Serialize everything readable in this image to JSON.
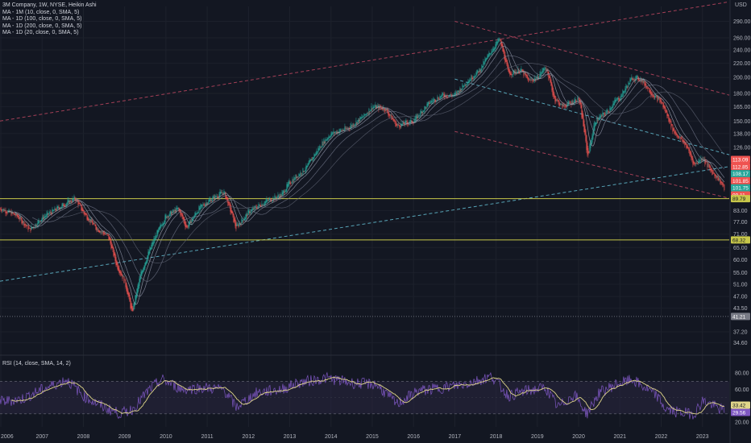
{
  "header": {
    "title": "3M Company, 1W, NYSE, Heikin Ashi",
    "indicators": [
      "MA - 1M (10, close, 0, SMA, 5)",
      "MA - 1D (100, close, 0, SMA, 5)",
      "MA - 1D (200, close, 0, SMA, 5)",
      "MA - 1D (20, close, 0, SMA, 5)"
    ],
    "currency": "USD"
  },
  "rsi_title": "RSI (14, close, SMA, 14, 2)",
  "colors": {
    "background": "#131722",
    "up": "#26a69a",
    "down": "#ef5350",
    "yellow_line": "#c8c84a",
    "trend_red": "#b2445c",
    "trend_cyan": "#5fb4c8",
    "rsi_line": "#7e57c2",
    "rsi_ma": "#e0d68a",
    "rsi_band": "#2a2640"
  },
  "chart_data": [
    {
      "type": "candlestick",
      "scale": "log",
      "y_ticks": [
        290.0,
        260.0,
        240.0,
        220.0,
        200.0,
        180.0,
        165.0,
        150.0,
        138.0,
        126.0,
        83.0,
        77.0,
        71.0,
        65.0,
        60.0,
        55.0,
        51.0,
        47.0,
        43.5,
        37.2,
        34.6
      ],
      "x_ticks": [
        "2006",
        "2007",
        "2008",
        "2009",
        "2010",
        "2011",
        "2012",
        "2013",
        "2014",
        "2015",
        "2016",
        "2017",
        "2018",
        "2019",
        "2020",
        "2021",
        "2022",
        "2023"
      ],
      "x_tick_years": [
        2006,
        2007,
        2008,
        2009,
        2010,
        2011,
        2012,
        2013,
        2014,
        2015,
        2016,
        2017,
        2018,
        2019,
        2020,
        2021,
        2022,
        2023
      ],
      "x_range": [
        2005.98,
        2023.65
      ],
      "ylim": [
        32.4,
        320
      ],
      "price_path": [
        [
          2006.0,
          84
        ],
        [
          2006.4,
          80
        ],
        [
          2006.7,
          73
        ],
        [
          2007.0,
          79
        ],
        [
          2007.5,
          86
        ],
        [
          2007.8,
          90
        ],
        [
          2008.0,
          82
        ],
        [
          2008.3,
          74
        ],
        [
          2008.6,
          70
        ],
        [
          2008.8,
          58
        ],
        [
          2009.0,
          52
        ],
        [
          2009.18,
          42
        ],
        [
          2009.4,
          55
        ],
        [
          2009.7,
          68
        ],
        [
          2010.0,
          80
        ],
        [
          2010.3,
          84
        ],
        [
          2010.5,
          74
        ],
        [
          2010.8,
          84
        ],
        [
          2011.0,
          88
        ],
        [
          2011.4,
          94
        ],
        [
          2011.7,
          74
        ],
        [
          2012.0,
          82
        ],
        [
          2012.4,
          88
        ],
        [
          2012.8,
          92
        ],
        [
          2013.0,
          100
        ],
        [
          2013.4,
          110
        ],
        [
          2013.8,
          130
        ],
        [
          2014.0,
          138
        ],
        [
          2014.4,
          143
        ],
        [
          2014.8,
          155
        ],
        [
          2015.0,
          165
        ],
        [
          2015.3,
          163
        ],
        [
          2015.6,
          145
        ],
        [
          2015.8,
          148
        ],
        [
          2016.0,
          150
        ],
        [
          2016.4,
          170
        ],
        [
          2016.7,
          178
        ],
        [
          2017.0,
          178
        ],
        [
          2017.3,
          195
        ],
        [
          2017.6,
          210
        ],
        [
          2017.85,
          235
        ],
        [
          2018.08,
          258
        ],
        [
          2018.3,
          205
        ],
        [
          2018.6,
          210
        ],
        [
          2018.8,
          195
        ],
        [
          2019.0,
          200
        ],
        [
          2019.2,
          215
        ],
        [
          2019.4,
          175
        ],
        [
          2019.6,
          165
        ],
        [
          2019.85,
          170
        ],
        [
          2020.0,
          175
        ],
        [
          2020.22,
          118
        ],
        [
          2020.4,
          150
        ],
        [
          2020.7,
          160
        ],
        [
          2020.9,
          172
        ],
        [
          2021.0,
          175
        ],
        [
          2021.3,
          200
        ],
        [
          2021.5,
          198
        ],
        [
          2021.8,
          178
        ],
        [
          2022.0,
          170
        ],
        [
          2022.3,
          140
        ],
        [
          2022.6,
          128
        ],
        [
          2022.8,
          112
        ],
        [
          2023.0,
          118
        ],
        [
          2023.2,
          108
        ],
        [
          2023.4,
          102
        ],
        [
          2023.55,
          95
        ]
      ],
      "price_labels": [
        {
          "value": "113.09",
          "color": "#ef5350"
        },
        {
          "value": "112.85",
          "color": "#ef5350"
        },
        {
          "value": "108.17",
          "color": "#26a69a"
        },
        {
          "value": "101.85",
          "color": "#ef5350"
        },
        {
          "value": "101.75",
          "color": "#26a69a"
        },
        {
          "value": "99.11",
          "color": "#ef5350"
        },
        {
          "value": "89.79",
          "color": "#c8c84a"
        },
        {
          "value": "68.32",
          "color": "#c8c84a"
        },
        {
          "value": "41.21",
          "color": "#787b86"
        }
      ],
      "horizontal_levels": [
        {
          "price": 89.79,
          "style": "solid"
        },
        {
          "price": 68.32,
          "style": "solid"
        },
        {
          "price": 41.21,
          "style": "dotted"
        }
      ],
      "trendlines": [
        {
          "style": "red-dashed",
          "from": [
            2005.98,
            150
          ],
          "to": [
            2023.65,
            330
          ]
        },
        {
          "style": "red-dashed",
          "from": [
            2017.0,
            290
          ],
          "to": [
            2023.65,
            178
          ]
        },
        {
          "style": "red-dashed",
          "from": [
            2017.0,
            140
          ],
          "to": [
            2023.65,
            90
          ]
        },
        {
          "style": "cyan-dashed",
          "from": [
            2017.0,
            198
          ],
          "to": [
            2023.65,
            120
          ]
        },
        {
          "style": "cyan-dashed",
          "from": [
            2005.98,
            52
          ],
          "to": [
            2023.65,
            111
          ]
        }
      ]
    },
    {
      "type": "line",
      "indicator": "RSI",
      "y_ticks": [
        80.0,
        60.0,
        40.0,
        20.0
      ],
      "band": [
        30,
        70
      ],
      "ylim": [
        14,
        100
      ],
      "value_labels": [
        {
          "value": "33.42",
          "color": "#e0d68a"
        },
        {
          "value": "29.56",
          "color": "#7e57c2"
        }
      ],
      "rsi_path": [
        [
          2006.0,
          45
        ],
        [
          2006.5,
          48
        ],
        [
          2007.0,
          60
        ],
        [
          2007.6,
          72
        ],
        [
          2008.0,
          52
        ],
        [
          2008.5,
          38
        ],
        [
          2008.9,
          30
        ],
        [
          2009.2,
          36
        ],
        [
          2009.6,
          60
        ],
        [
          2009.9,
          72
        ],
        [
          2010.4,
          60
        ],
        [
          2010.9,
          62
        ],
        [
          2011.4,
          60
        ],
        [
          2011.7,
          38
        ],
        [
          2012.2,
          56
        ],
        [
          2012.8,
          60
        ],
        [
          2013.2,
          68
        ],
        [
          2013.9,
          74
        ],
        [
          2014.5,
          68
        ],
        [
          2015.1,
          66
        ],
        [
          2015.6,
          42
        ],
        [
          2016.1,
          58
        ],
        [
          2016.7,
          62
        ],
        [
          2017.2,
          66
        ],
        [
          2017.9,
          76
        ],
        [
          2018.3,
          52
        ],
        [
          2018.7,
          58
        ],
        [
          2019.2,
          62
        ],
        [
          2019.5,
          38
        ],
        [
          2019.9,
          54
        ],
        [
          2020.2,
          30
        ],
        [
          2020.5,
          56
        ],
        [
          2020.9,
          66
        ],
        [
          2021.3,
          72
        ],
        [
          2021.6,
          62
        ],
        [
          2021.9,
          52
        ],
        [
          2022.1,
          36
        ],
        [
          2022.4,
          32
        ],
        [
          2022.8,
          30
        ],
        [
          2023.0,
          46
        ],
        [
          2023.2,
          42
        ],
        [
          2023.4,
          36
        ],
        [
          2023.6,
          34
        ]
      ]
    }
  ]
}
